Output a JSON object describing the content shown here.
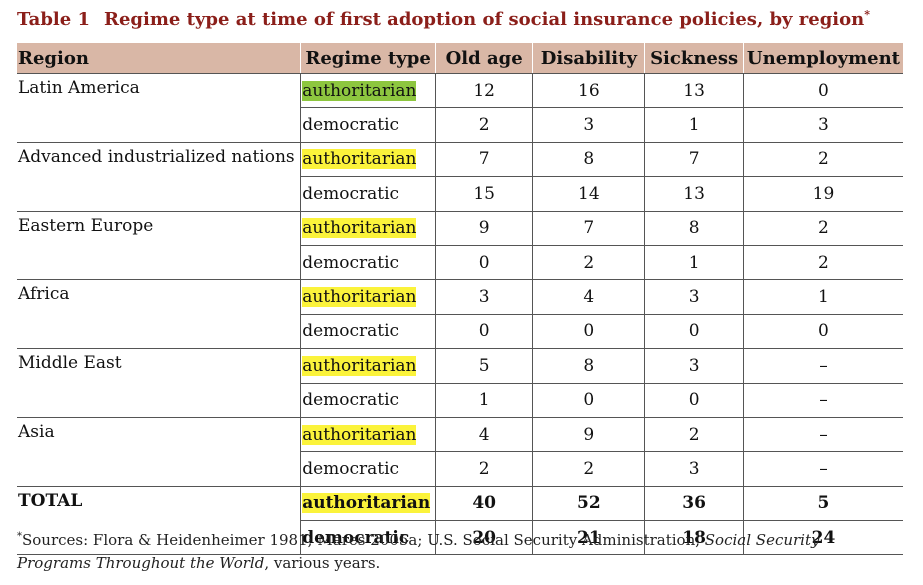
{
  "title": {
    "number": "Table 1",
    "text": "Regime type at time of first adoption of social insurance policies, by region",
    "mark": "*"
  },
  "headers": [
    "Region",
    "Regime type",
    "Old age",
    "Disability",
    "Sickness",
    "Unemployment"
  ],
  "groups": [
    {
      "region": "Latin America",
      "rows": [
        {
          "regime": "authoritarian",
          "values": [
            "12",
            "16",
            "13",
            "0"
          ]
        },
        {
          "regime": "democratic",
          "values": [
            "2",
            "3",
            "1",
            "3"
          ]
        }
      ]
    },
    {
      "region": "Advanced industrialized nations",
      "rows": [
        {
          "regime": "authoritarian",
          "values": [
            "7",
            "8",
            "7",
            "2"
          ]
        },
        {
          "regime": "democratic",
          "values": [
            "15",
            "14",
            "13",
            "19"
          ]
        }
      ]
    },
    {
      "region": "Eastern Europe",
      "rows": [
        {
          "regime": "authoritarian",
          "values": [
            "9",
            "7",
            "8",
            "2"
          ]
        },
        {
          "regime": "democratic",
          "values": [
            "0",
            "2",
            "1",
            "2"
          ]
        }
      ]
    },
    {
      "region": "Africa",
      "rows": [
        {
          "regime": "authoritarian",
          "values": [
            "3",
            "4",
            "3",
            "1"
          ]
        },
        {
          "regime": "democratic",
          "values": [
            "0",
            "0",
            "0",
            "0"
          ]
        }
      ]
    },
    {
      "region": "Middle East",
      "rows": [
        {
          "regime": "authoritarian",
          "values": [
            "5",
            "8",
            "3",
            "–"
          ]
        },
        {
          "regime": "democratic",
          "values": [
            "1",
            "0",
            "0",
            "–"
          ]
        }
      ]
    },
    {
      "region": "Asia",
      "rows": [
        {
          "regime": "authoritarian",
          "values": [
            "4",
            "9",
            "2",
            "–"
          ]
        },
        {
          "regime": "democratic",
          "values": [
            "2",
            "2",
            "3",
            "–"
          ]
        }
      ]
    },
    {
      "region": "TOTAL",
      "total": true,
      "rows": [
        {
          "regime": "authoritarian",
          "values": [
            "40",
            "52",
            "36",
            "5"
          ]
        },
        {
          "regime": "democratic",
          "values": [
            "20",
            "21",
            "18",
            "24"
          ]
        }
      ]
    }
  ],
  "highlight_colors": {
    "authoritarian": "#fbf33b",
    "authoritarian_first": "#8dc63f"
  },
  "footnote": {
    "mark": "*",
    "text_before": "Sources: Flora & Heidenheimer 1981; Mares 2005a; U.S. Social Security Administration, ",
    "italic": "Social Security Programs Throughout the World",
    "text_after": ", various years."
  }
}
